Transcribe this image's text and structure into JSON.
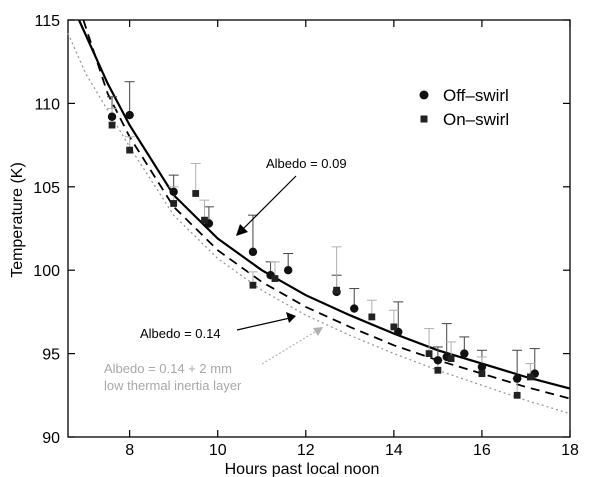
{
  "chart_data": {
    "type": "scatter",
    "xlabel": "Hours past local noon",
    "ylabel": "Temperature (K)",
    "xlim": [
      6.6,
      18
    ],
    "ylim": [
      90,
      115
    ],
    "xticks": [
      8,
      10,
      12,
      14,
      16,
      18
    ],
    "yticks": [
      90,
      95,
      100,
      105,
      110,
      115
    ],
    "legend": {
      "placement": "top-right"
    },
    "series": [
      {
        "name": "Off–swirl",
        "marker": "circle",
        "points": [
          {
            "x": 7.6,
            "y": 109.2,
            "err": 1.2
          },
          {
            "x": 8.0,
            "y": 109.3,
            "err": 2.0
          },
          {
            "x": 9.0,
            "y": 104.7,
            "err": 1.0
          },
          {
            "x": 9.8,
            "y": 102.8,
            "err": 1.0
          },
          {
            "x": 10.8,
            "y": 101.1,
            "err": 2.2
          },
          {
            "x": 11.2,
            "y": 99.7,
            "err": 0.8
          },
          {
            "x": 11.6,
            "y": 100.0,
            "err": 1.0
          },
          {
            "x": 12.7,
            "y": 98.7,
            "err": 1.0
          },
          {
            "x": 13.1,
            "y": 97.7,
            "err": 1.2
          },
          {
            "x": 14.1,
            "y": 96.3,
            "err": 1.8
          },
          {
            "x": 15.0,
            "y": 94.6,
            "err": 0.8
          },
          {
            "x": 15.2,
            "y": 94.8,
            "err": 2.0
          },
          {
            "x": 15.6,
            "y": 95.0,
            "err": 1.0
          },
          {
            "x": 16.0,
            "y": 94.2,
            "err": 1.0
          },
          {
            "x": 16.8,
            "y": 93.5,
            "err": 1.7
          },
          {
            "x": 17.2,
            "y": 93.8,
            "err": 1.5
          }
        ]
      },
      {
        "name": "On–swirl",
        "marker": "square",
        "points": [
          {
            "x": 7.6,
            "y": 108.7,
            "err": 1.0
          },
          {
            "x": 8.0,
            "y": 107.2,
            "err": 0.8
          },
          {
            "x": 9.0,
            "y": 104.0,
            "err": 1.0
          },
          {
            "x": 9.5,
            "y": 104.6,
            "err": 1.8
          },
          {
            "x": 9.7,
            "y": 103.0,
            "err": 1.2
          },
          {
            "x": 10.8,
            "y": 99.1,
            "err": 0.8
          },
          {
            "x": 11.3,
            "y": 99.5,
            "err": 1.0
          },
          {
            "x": 12.7,
            "y": 98.8,
            "err": 2.6
          },
          {
            "x": 13.5,
            "y": 97.2,
            "err": 1.0
          },
          {
            "x": 14.0,
            "y": 96.6,
            "err": 1.0
          },
          {
            "x": 14.8,
            "y": 95.0,
            "err": 1.5
          },
          {
            "x": 15.0,
            "y": 94.0,
            "err": 0.6
          },
          {
            "x": 15.3,
            "y": 94.7,
            "err": 1.0
          },
          {
            "x": 16.0,
            "y": 93.8,
            "err": 1.0
          },
          {
            "x": 16.8,
            "y": 92.5,
            "err": 1.0
          },
          {
            "x": 17.1,
            "y": 93.6,
            "err": 0.8
          }
        ]
      }
    ],
    "curves": [
      {
        "label": "Albedo = 0.09",
        "style": "solid",
        "color": "#000000",
        "x": [
          6.85,
          7.5,
          8,
          9,
          10,
          11,
          12,
          13,
          14,
          15,
          16,
          17,
          18
        ],
        "y": [
          115.0,
          111.2,
          108.7,
          104.5,
          101.9,
          100.0,
          98.5,
          97.3,
          96.2,
          95.2,
          94.4,
          93.6,
          92.9
        ]
      },
      {
        "label": "Albedo = 0.14",
        "style": "dashed",
        "color": "#000000",
        "x": [
          6.95,
          7.5,
          8,
          9,
          10,
          11,
          12,
          13,
          14,
          15,
          16,
          17,
          18
        ],
        "y": [
          115.0,
          110.6,
          108.0,
          103.8,
          101.2,
          99.3,
          97.8,
          96.6,
          95.5,
          94.6,
          93.8,
          93.0,
          92.3
        ]
      },
      {
        "label": "Albedo = 0.14 + 2 mm\nlow thermal inertia layer",
        "style": "dotted",
        "color": "#9a9a9a",
        "x": [
          6.6,
          7,
          7.5,
          8,
          9,
          10,
          11,
          12,
          13,
          14,
          15,
          16,
          17,
          18
        ],
        "y": [
          114.2,
          111.8,
          109.6,
          107.4,
          103.3,
          100.7,
          98.8,
          97.3,
          96.1,
          95.0,
          94.0,
          93.1,
          92.2,
          91.4
        ]
      }
    ],
    "annotations": [
      {
        "text": "Albedo = 0.09",
        "color": "#000000"
      },
      {
        "text": "Albedo = 0.14",
        "color": "#000000"
      },
      {
        "text": "Albedo = 0.14 + 2 mm",
        "color": "#a8a8a8"
      },
      {
        "text": "low thermal inertia layer",
        "color": "#a8a8a8"
      }
    ]
  }
}
